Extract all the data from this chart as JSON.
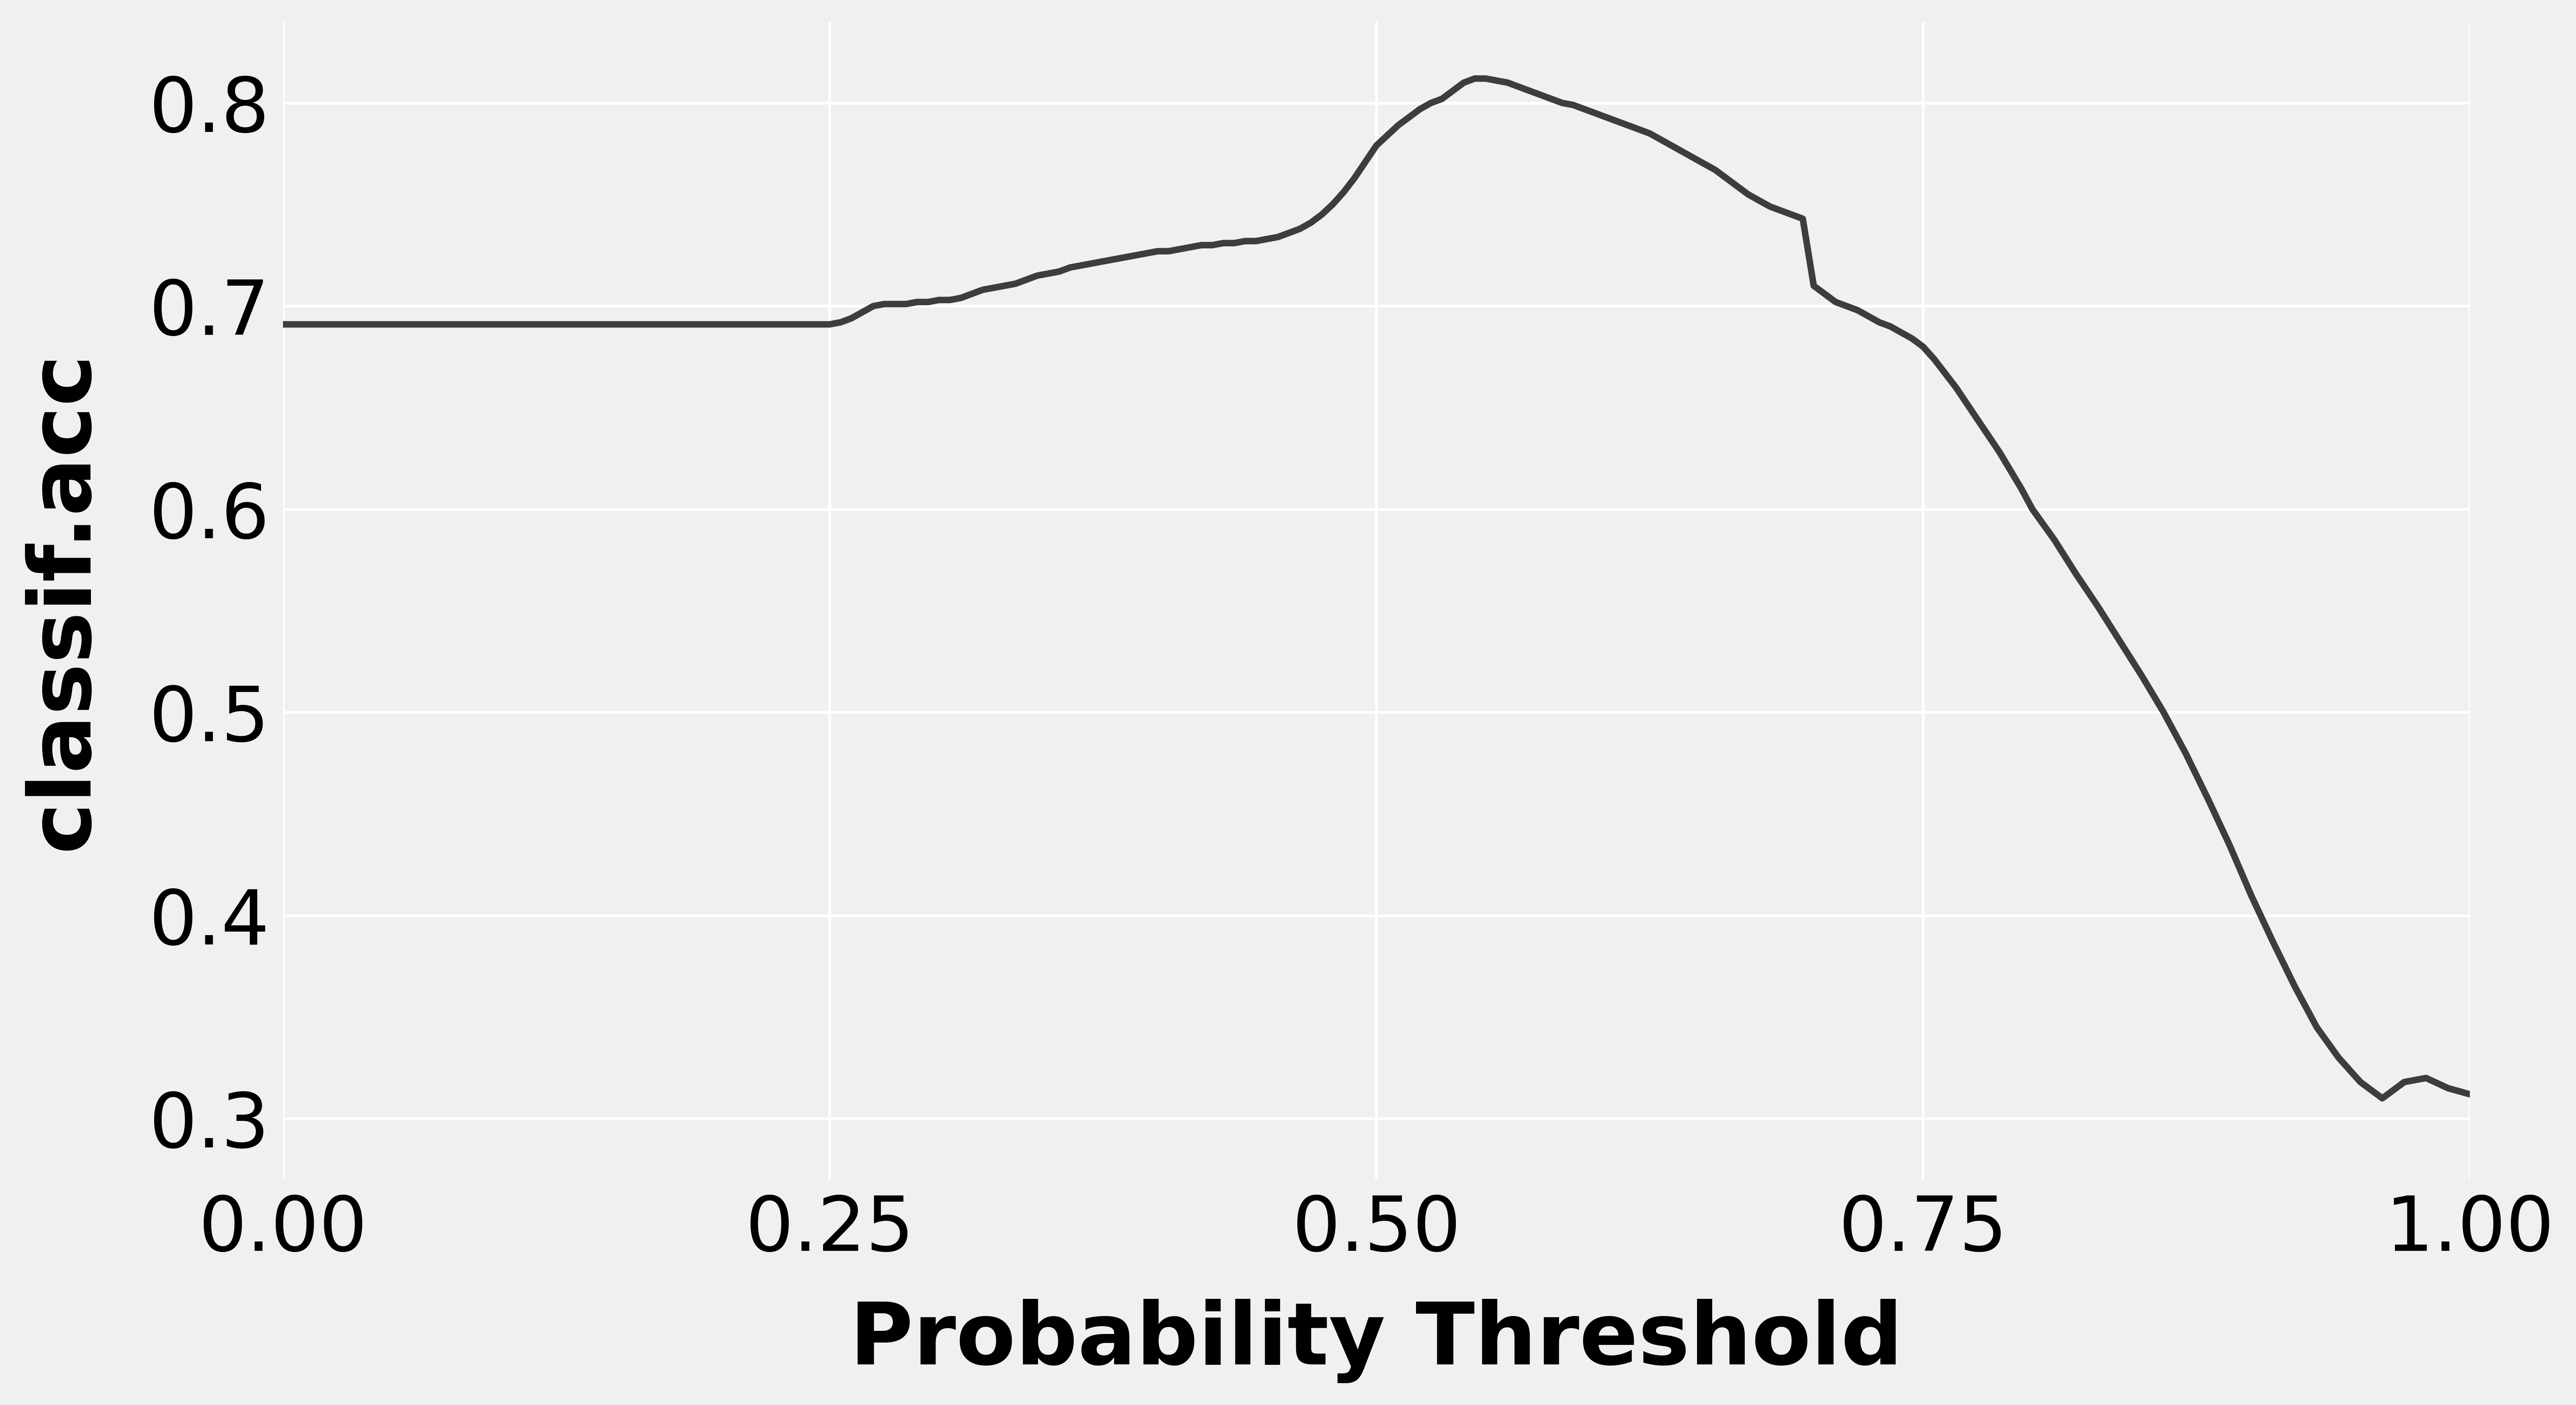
{
  "title": "",
  "xlabel": "Probability Threshold",
  "ylabel": "classif.acc",
  "background_color": "#f0f0f0",
  "plot_bg_color": "#f0f0f0",
  "line_color": "#3d3d3d",
  "line_width": 12,
  "xlim": [
    0.0,
    1.0
  ],
  "ylim": [
    0.27,
    0.84
  ],
  "xticks": [
    0.0,
    0.25,
    0.5,
    0.75,
    1.0
  ],
  "yticks": [
    0.3,
    0.4,
    0.5,
    0.6,
    0.7,
    0.8
  ],
  "xlabel_fontsize": 160,
  "ylabel_fontsize": 160,
  "tick_fontsize": 140,
  "grid_color": "#ffffff",
  "grid_linewidth": 5,
  "x": [
    0.0,
    0.005,
    0.01,
    0.015,
    0.02,
    0.025,
    0.03,
    0.04,
    0.05,
    0.06,
    0.07,
    0.08,
    0.09,
    0.1,
    0.11,
    0.12,
    0.13,
    0.14,
    0.15,
    0.16,
    0.17,
    0.18,
    0.19,
    0.2,
    0.21,
    0.22,
    0.23,
    0.24,
    0.25,
    0.255,
    0.26,
    0.265,
    0.27,
    0.275,
    0.28,
    0.285,
    0.29,
    0.295,
    0.3,
    0.305,
    0.31,
    0.315,
    0.32,
    0.325,
    0.33,
    0.335,
    0.34,
    0.345,
    0.35,
    0.355,
    0.36,
    0.365,
    0.37,
    0.375,
    0.38,
    0.385,
    0.39,
    0.395,
    0.4,
    0.405,
    0.41,
    0.415,
    0.42,
    0.425,
    0.43,
    0.435,
    0.44,
    0.445,
    0.45,
    0.455,
    0.46,
    0.465,
    0.47,
    0.475,
    0.48,
    0.485,
    0.49,
    0.495,
    0.5,
    0.505,
    0.51,
    0.515,
    0.52,
    0.525,
    0.53,
    0.535,
    0.54,
    0.545,
    0.55,
    0.555,
    0.56,
    0.565,
    0.57,
    0.575,
    0.58,
    0.585,
    0.59,
    0.595,
    0.6,
    0.605,
    0.61,
    0.615,
    0.62,
    0.625,
    0.63,
    0.635,
    0.64,
    0.645,
    0.65,
    0.655,
    0.66,
    0.665,
    0.67,
    0.675,
    0.68,
    0.685,
    0.69,
    0.695,
    0.7,
    0.705,
    0.71,
    0.715,
    0.72,
    0.725,
    0.73,
    0.735,
    0.74,
    0.745,
    0.75,
    0.755,
    0.76,
    0.765,
    0.77,
    0.775,
    0.78,
    0.785,
    0.79,
    0.795,
    0.8,
    0.81,
    0.82,
    0.83,
    0.84,
    0.85,
    0.86,
    0.87,
    0.88,
    0.89,
    0.9,
    0.91,
    0.92,
    0.93,
    0.94,
    0.95,
    0.96,
    0.97,
    0.98,
    0.99,
    1.0
  ],
  "y": [
    0.691,
    0.691,
    0.691,
    0.691,
    0.691,
    0.691,
    0.691,
    0.691,
    0.691,
    0.691,
    0.691,
    0.691,
    0.691,
    0.691,
    0.691,
    0.691,
    0.691,
    0.691,
    0.691,
    0.691,
    0.691,
    0.691,
    0.691,
    0.691,
    0.691,
    0.691,
    0.691,
    0.691,
    0.691,
    0.692,
    0.694,
    0.697,
    0.7,
    0.701,
    0.701,
    0.701,
    0.702,
    0.702,
    0.703,
    0.703,
    0.704,
    0.706,
    0.708,
    0.709,
    0.71,
    0.711,
    0.713,
    0.715,
    0.716,
    0.717,
    0.719,
    0.72,
    0.721,
    0.722,
    0.723,
    0.724,
    0.725,
    0.726,
    0.727,
    0.727,
    0.728,
    0.729,
    0.73,
    0.73,
    0.731,
    0.731,
    0.732,
    0.732,
    0.733,
    0.734,
    0.736,
    0.738,
    0.741,
    0.745,
    0.75,
    0.756,
    0.763,
    0.771,
    0.779,
    0.784,
    0.789,
    0.793,
    0.797,
    0.8,
    0.802,
    0.806,
    0.81,
    0.812,
    0.812,
    0.811,
    0.81,
    0.808,
    0.806,
    0.804,
    0.802,
    0.8,
    0.799,
    0.797,
    0.795,
    0.793,
    0.791,
    0.789,
    0.787,
    0.785,
    0.782,
    0.779,
    0.776,
    0.773,
    0.77,
    0.767,
    0.763,
    0.759,
    0.755,
    0.752,
    0.749,
    0.747,
    0.745,
    0.743,
    0.71,
    0.706,
    0.702,
    0.7,
    0.698,
    0.695,
    0.692,
    0.69,
    0.687,
    0.684,
    0.68,
    0.674,
    0.667,
    0.66,
    0.652,
    0.644,
    0.636,
    0.628,
    0.619,
    0.61,
    0.6,
    0.585,
    0.568,
    0.552,
    0.535,
    0.518,
    0.5,
    0.48,
    0.458,
    0.435,
    0.41,
    0.387,
    0.365,
    0.345,
    0.33,
    0.318,
    0.31,
    0.318,
    0.32,
    0.315,
    0.312
  ]
}
